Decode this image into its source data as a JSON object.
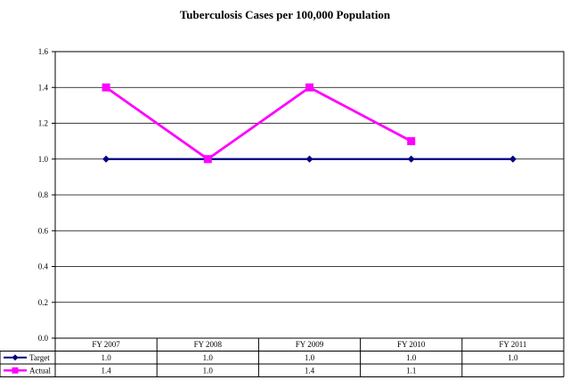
{
  "chart_data": {
    "type": "line",
    "title": "Tuberculosis Cases per 100,000 Population",
    "categories": [
      "FY 2007",
      "FY 2008",
      "FY 2009",
      "FY 2010",
      "FY 2011"
    ],
    "ylim": [
      0,
      1.6
    ],
    "yticks": [
      "0.0",
      "0.2",
      "0.4",
      "0.6",
      "0.8",
      "1.0",
      "1.2",
      "1.4",
      "1.6"
    ],
    "grid": true,
    "legend": "data-table",
    "series": [
      {
        "name": "Target",
        "values": [
          1.0,
          1.0,
          1.0,
          1.0,
          1.0
        ],
        "labels": [
          "1.0",
          "1.0",
          "1.0",
          "1.0",
          "1.0"
        ],
        "color": "#000080",
        "marker": "diamond"
      },
      {
        "name": "Actual",
        "values": [
          1.4,
          1.0,
          1.4,
          1.1,
          null
        ],
        "labels": [
          "1.4",
          "1.0",
          "1.4",
          "1.1",
          ""
        ],
        "color": "#ff00ff",
        "marker": "square"
      }
    ]
  }
}
